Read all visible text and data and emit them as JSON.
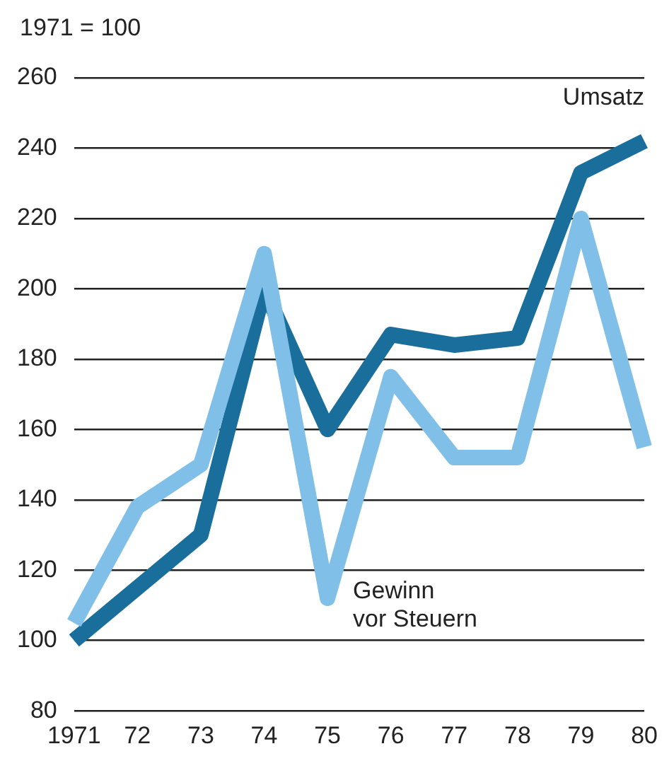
{
  "chart_data": {
    "type": "line",
    "ylabel": "1971 = 100",
    "categories": [
      "1971",
      "72",
      "73",
      "74",
      "75",
      "76",
      "77",
      "78",
      "79",
      "80"
    ],
    "series": [
      {
        "name": "Gewinn vor Steuern",
        "color": "#80c0e8",
        "values": [
          105,
          138,
          150,
          210,
          112,
          175,
          152,
          152,
          220,
          155
        ]
      },
      {
        "name": "Umsatz",
        "color": "#1a6e9c",
        "values": [
          100,
          115,
          130,
          200,
          160,
          187,
          184,
          186,
          233,
          242
        ]
      }
    ],
    "ylim": [
      80,
      260
    ],
    "yticks": [
      80,
      100,
      120,
      140,
      160,
      180,
      200,
      220,
      240,
      260
    ],
    "grid": "y",
    "legend": false,
    "marker": "none",
    "line_style": "solid"
  }
}
